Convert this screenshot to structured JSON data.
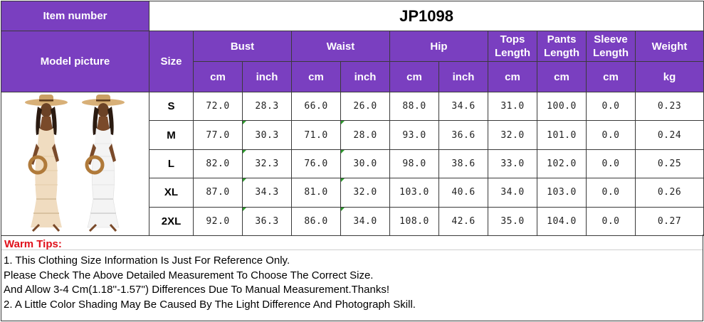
{
  "header": {
    "item_number_label": "Item number",
    "item_number": "JP1098",
    "model_picture_label": "Model picture",
    "size_label": "Size"
  },
  "columns": [
    {
      "label": "Bust",
      "units": [
        "cm",
        "inch"
      ]
    },
    {
      "label": "Waist",
      "units": [
        "cm",
        "inch"
      ]
    },
    {
      "label": "Hip",
      "units": [
        "cm",
        "inch"
      ]
    },
    {
      "label": "Tops Length",
      "units": [
        "cm"
      ]
    },
    {
      "label": "Pants Length",
      "units": [
        "cm"
      ]
    },
    {
      "label": "Sleeve Length",
      "units": [
        "cm"
      ]
    },
    {
      "label": "Weight",
      "units": [
        "kg"
      ]
    }
  ],
  "rows": [
    {
      "size": "S",
      "values": [
        "72.0",
        "28.3",
        "66.0",
        "26.0",
        "88.0",
        "34.6",
        "31.0",
        "100.0",
        "0.0",
        "0.23"
      ]
    },
    {
      "size": "M",
      "values": [
        "77.0",
        "30.3",
        "71.0",
        "28.0",
        "93.0",
        "36.6",
        "32.0",
        "101.0",
        "0.0",
        "0.24"
      ]
    },
    {
      "size": "L",
      "values": [
        "82.0",
        "32.3",
        "76.0",
        "30.0",
        "98.0",
        "38.6",
        "33.0",
        "102.0",
        "0.0",
        "0.25"
      ]
    },
    {
      "size": "XL",
      "values": [
        "87.0",
        "34.3",
        "81.0",
        "32.0",
        "103.0",
        "40.6",
        "34.0",
        "103.0",
        "0.0",
        "0.26"
      ]
    },
    {
      "size": "2XL",
      "values": [
        "92.0",
        "36.3",
        "86.0",
        "34.0",
        "108.0",
        "42.6",
        "35.0",
        "104.0",
        "0.0",
        "0.27"
      ]
    }
  ],
  "tips": {
    "title": "Warm Tips:",
    "lines": [
      "1. This Clothing Size Information Is Just For Reference Only.",
      "Please Check The Above Detailed Measurement To Choose The Correct Size.",
      "And Allow 3-4 Cm(1.18''-1.57'') Differences Due To Manual Measurement.Thanks!",
      "2. A Little Color Shading May Be Caused By The Light Difference And Photograph Skill."
    ]
  },
  "colors": {
    "header_purple": "#7a3fc0",
    "tips_title_red": "#e0101a",
    "dress_beige": "#f0dcc0",
    "dress_white": "#f4f4f4",
    "hat_straw": "#d8b078"
  },
  "images": [
    {
      "name": "model-beige-dress",
      "depicts": "woman in straw hat and beige crochet maxi dress holding round bag"
    },
    {
      "name": "model-white-dress",
      "depicts": "woman in straw hat and white crochet maxi dress holding round bag"
    }
  ]
}
